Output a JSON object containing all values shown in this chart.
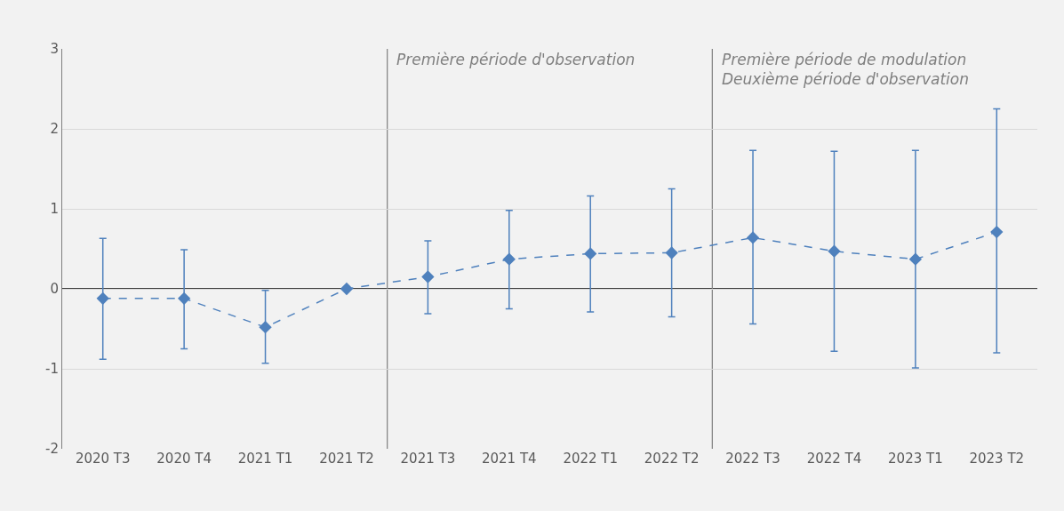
{
  "chart_data": {
    "type": "line",
    "categories": [
      "2020 T3",
      "2020 T4",
      "2021 T1",
      "2021 T2",
      "2021 T3",
      "2021 T4",
      "2022 T1",
      "2022 T2",
      "2022 T3",
      "2022 T4",
      "2023 T1",
      "2023 T2"
    ],
    "series": [
      {
        "color": "#4f81bd",
        "values": [
          -0.12,
          -0.12,
          -0.48,
          0,
          0.15,
          0.37,
          0.44,
          0.45,
          0.64,
          0.47,
          0.37,
          0.71
        ],
        "errors": [
          [
            -0.88,
            0.63
          ],
          [
            -0.75,
            0.49
          ],
          [
            -0.93,
            -0.02
          ],
          null,
          [
            -0.31,
            0.6
          ],
          [
            -0.25,
            0.98
          ],
          [
            -0.29,
            1.16
          ],
          [
            -0.35,
            1.25
          ],
          [
            -0.44,
            1.73
          ],
          [
            -0.78,
            1.72
          ],
          [
            -0.99,
            1.73
          ],
          [
            -0.8,
            2.25
          ]
        ]
      }
    ],
    "ylim": [
      -2,
      3
    ],
    "yticks": [
      -2,
      -1,
      0,
      1,
      2,
      3
    ],
    "grid": "y",
    "legend": false,
    "marker": "diamond",
    "line_style": "dashed",
    "ref_lines": [
      {
        "axis": "y",
        "value": 0,
        "color": "#000000"
      }
    ],
    "annotations": [
      "Première période d'observation",
      "Première période de modulation\nDeuxième période d'observation"
    ]
  }
}
